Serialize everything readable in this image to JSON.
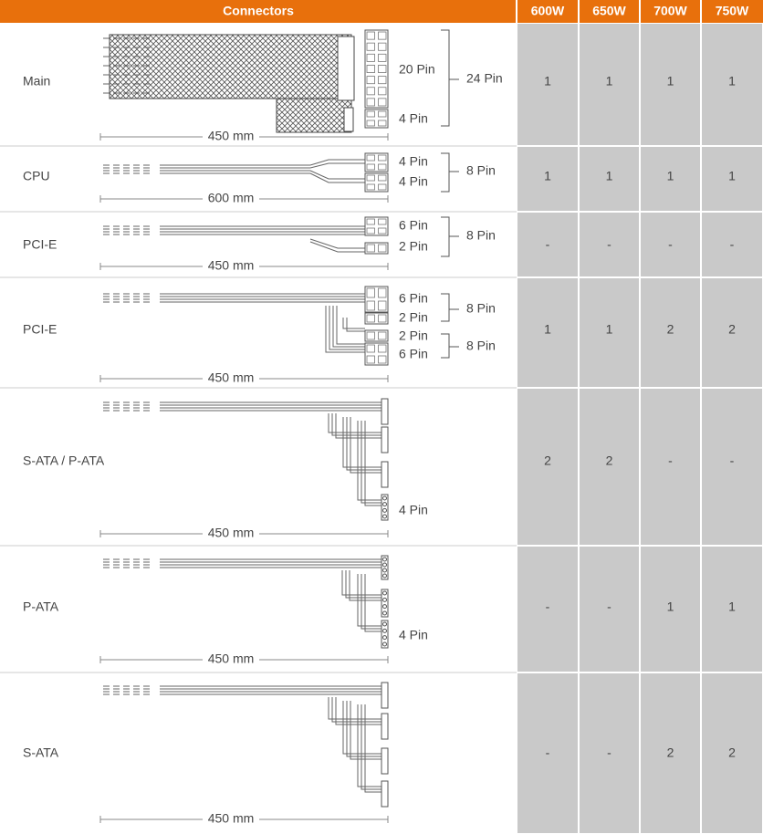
{
  "table": {
    "header": [
      "Connectors",
      "600W",
      "650W",
      "700W",
      "750W"
    ],
    "rows": [
      {
        "name": "Main",
        "length": "450 mm",
        "pins": [
          "20 Pin",
          "4 Pin"
        ],
        "totals": [
          "24 Pin"
        ],
        "values": [
          1,
          1,
          1,
          1
        ]
      },
      {
        "name": "CPU",
        "length": "600 mm",
        "pins": [
          "4 Pin",
          "4 Pin"
        ],
        "totals": [
          "8 Pin"
        ],
        "values": [
          1,
          1,
          1,
          1
        ]
      },
      {
        "name": "PCI-E",
        "length": "450 mm",
        "pins": [
          "6 Pin",
          "2 Pin"
        ],
        "totals": [
          "8 Pin"
        ],
        "values": [
          "-",
          "-",
          "-",
          "-"
        ]
      },
      {
        "name": "PCI-E",
        "length": "450 mm",
        "pins": [
          "6 Pin",
          "2 Pin",
          "2 Pin",
          "6 Pin"
        ],
        "totals": [
          "8 Pin",
          "8 Pin"
        ],
        "values": [
          1,
          1,
          2,
          2
        ]
      },
      {
        "name": "S-ATA / P-ATA",
        "length": "450 mm",
        "pins": [
          "4 Pin"
        ],
        "totals": [],
        "values": [
          2,
          2,
          "-",
          "-"
        ]
      },
      {
        "name": "P-ATA",
        "length": "450 mm",
        "pins": [
          "4 Pin"
        ],
        "totals": [],
        "values": [
          "-",
          "-",
          1,
          1
        ]
      },
      {
        "name": "S-ATA",
        "length": "450 mm",
        "pins": [],
        "totals": [],
        "values": [
          "-",
          "-",
          2,
          2
        ]
      }
    ]
  }
}
